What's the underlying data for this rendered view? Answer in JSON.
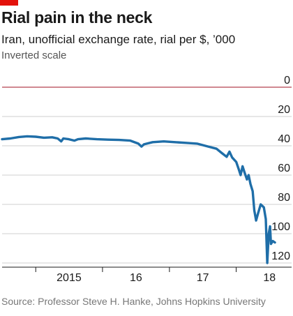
{
  "header": {
    "title": "Rial pain in the neck",
    "subtitle": "Iran, unofficial exchange rate, rial per $, ’000",
    "note": "Inverted scale"
  },
  "source": "Source: Professor Steve H. Hanke, Johns Hopkins University",
  "colors": {
    "accent": "#e3120b",
    "line": "#1f6ea8",
    "zero_line": "#b5424f",
    "grid": "#cfcfcf",
    "axis": "#1a1a1a"
  },
  "chart_data": {
    "type": "line",
    "title": "Rial pain in the neck",
    "subtitle": "Iran, unofficial exchange rate, rial per $, ’000",
    "ylabel": "",
    "xlabel": "",
    "y_scale": "inverted",
    "ylim": [
      0,
      120
    ],
    "yticks": [
      "0",
      "20",
      "40",
      "60",
      "80",
      "100",
      "120"
    ],
    "xticks": [
      "2015",
      "16",
      "17",
      "18"
    ],
    "xlim": [
      "2014-07-01",
      "2018-10-31"
    ],
    "grid": true,
    "series": [
      {
        "name": "",
        "points": [
          [
            "2014-07-01",
            35.5
          ],
          [
            "2014-08-15",
            35.0
          ],
          [
            "2014-10-01",
            34.0
          ],
          [
            "2014-11-15",
            33.5
          ],
          [
            "2015-01-01",
            33.8
          ],
          [
            "2015-02-15",
            34.5
          ],
          [
            "2015-04-01",
            34.2
          ],
          [
            "2015-05-01",
            35.0
          ],
          [
            "2015-05-20",
            37.0
          ],
          [
            "2015-06-01",
            35.0
          ],
          [
            "2015-07-01",
            35.5
          ],
          [
            "2015-08-01",
            36.5
          ],
          [
            "2015-08-20",
            35.5
          ],
          [
            "2015-10-01",
            35.0
          ],
          [
            "2015-12-01",
            35.5
          ],
          [
            "2016-02-01",
            35.8
          ],
          [
            "2016-04-01",
            36.0
          ],
          [
            "2016-06-01",
            36.5
          ],
          [
            "2016-07-15",
            38.5
          ],
          [
            "2016-08-01",
            40.5
          ],
          [
            "2016-08-15",
            39.0
          ],
          [
            "2016-10-01",
            37.5
          ],
          [
            "2016-12-01",
            37.0
          ],
          [
            "2017-02-01",
            37.5
          ],
          [
            "2017-04-01",
            38.0
          ],
          [
            "2017-06-01",
            38.5
          ],
          [
            "2017-08-01",
            40.5
          ],
          [
            "2017-09-15",
            42.0
          ],
          [
            "2017-10-15",
            45.0
          ],
          [
            "2017-11-10",
            47.5
          ],
          [
            "2017-11-25",
            44.0
          ],
          [
            "2017-12-10",
            48.0
          ],
          [
            "2018-01-01",
            51.0
          ],
          [
            "2018-01-15",
            56.0
          ],
          [
            "2018-01-25",
            60.0
          ],
          [
            "2018-02-05",
            54.0
          ],
          [
            "2018-02-15",
            58.0
          ],
          [
            "2018-03-01",
            63.0
          ],
          [
            "2018-03-10",
            60.0
          ],
          [
            "2018-03-20",
            66.0
          ],
          [
            "2018-04-01",
            71.0
          ],
          [
            "2018-04-10",
            84.0
          ],
          [
            "2018-04-20",
            91.0
          ],
          [
            "2018-05-01",
            86.0
          ],
          [
            "2018-05-15",
            80.0
          ],
          [
            "2018-06-01",
            82.0
          ],
          [
            "2018-06-12",
            90.0
          ],
          [
            "2018-06-20",
            120.0
          ],
          [
            "2018-06-28",
            100.0
          ],
          [
            "2018-07-05",
            95.0
          ],
          [
            "2018-07-10",
            107.0
          ],
          [
            "2018-07-20",
            105.0
          ],
          [
            "2018-08-01",
            106.0
          ]
        ]
      }
    ]
  }
}
